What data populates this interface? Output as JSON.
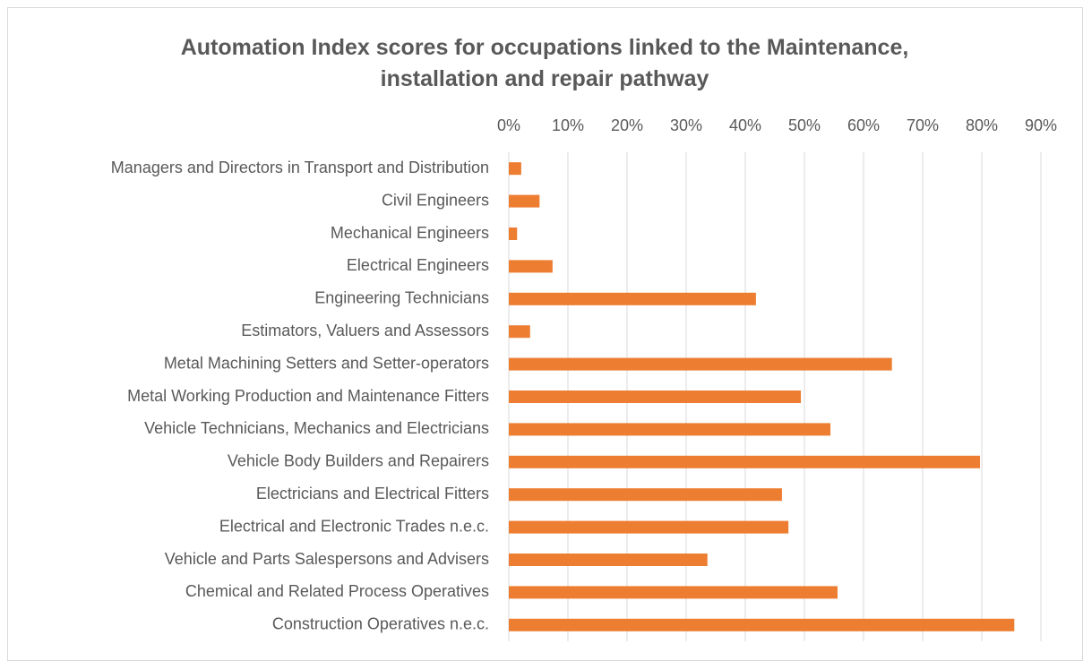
{
  "chart_data": {
    "type": "bar",
    "orientation": "horizontal",
    "title": "Automation Index scores for occupations linked to the Maintenance, installation and repair pathway",
    "categories": [
      "Managers and Directors in Transport and Distribution",
      "Civil Engineers",
      "Mechanical Engineers",
      "Electrical Engineers",
      "Engineering Technicians",
      "Estimators, Valuers and Assessors",
      "Metal Machining Setters and Setter-operators",
      "Metal Working Production and Maintenance Fitters",
      "Vehicle Technicians, Mechanics and Electricians",
      "Vehicle Body Builders and Repairers",
      "Electricians and Electrical Fitters",
      "Electrical and Electronic Trades n.e.c.",
      "Vehicle and Parts Salespersons and Advisers",
      "Chemical and Related Process Operatives",
      "Construction Operatives n.e.c."
    ],
    "values": [
      2.1,
      5.2,
      1.4,
      7.4,
      41.8,
      3.6,
      64.8,
      49.4,
      54.4,
      79.7,
      46.2,
      47.3,
      33.6,
      55.6,
      85.5
    ],
    "color": "#ed7d31",
    "xlim": [
      0,
      90
    ],
    "xticks": [
      {
        "value": 0,
        "label": "0%"
      },
      {
        "value": 10,
        "label": "10%"
      },
      {
        "value": 20,
        "label": "20%"
      },
      {
        "value": 30,
        "label": "30%"
      },
      {
        "value": 40,
        "label": "40%"
      },
      {
        "value": 50,
        "label": "50%"
      },
      {
        "value": 60,
        "label": "60%"
      },
      {
        "value": 70,
        "label": "70%"
      },
      {
        "value": 80,
        "label": "80%"
      },
      {
        "value": 90,
        "label": "90%"
      }
    ],
    "grid": true
  }
}
